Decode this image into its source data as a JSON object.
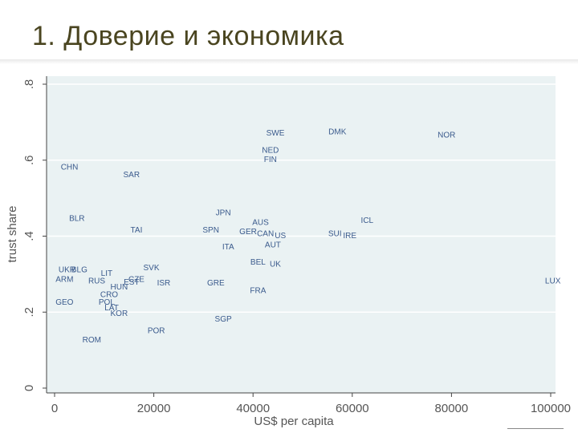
{
  "slide": {
    "title": "1. Доверие и экономика"
  },
  "chart_data": {
    "type": "scatter",
    "xlabel": "US$ per capita",
    "ylabel": "trust share",
    "xlim": [
      0,
      103000
    ],
    "ylim": [
      0,
      0.8
    ],
    "x_ticks": [
      0,
      20000,
      40000,
      60000,
      80000,
      100000
    ],
    "x_tick_labels": [
      "0",
      "20000",
      "40000",
      "60000",
      "80000",
      "100000"
    ],
    "y_ticks": [
      0,
      0.2,
      0.4,
      0.6,
      0.8
    ],
    "y_tick_labels": [
      "0",
      ".2",
      ".4",
      ".6",
      ".8"
    ],
    "grid": true,
    "points": [
      {
        "label": "SWE",
        "x": 44500,
        "y": 0.665
      },
      {
        "label": "DMK",
        "x": 57000,
        "y": 0.668
      },
      {
        "label": "NOR",
        "x": 79000,
        "y": 0.66
      },
      {
        "label": "NED",
        "x": 43500,
        "y": 0.62
      },
      {
        "label": "FIN",
        "x": 43500,
        "y": 0.595
      },
      {
        "label": "CHN",
        "x": 3000,
        "y": 0.575
      },
      {
        "label": "SAR",
        "x": 15500,
        "y": 0.555
      },
      {
        "label": "JPN",
        "x": 34000,
        "y": 0.455
      },
      {
        "label": "BLR",
        "x": 4500,
        "y": 0.44
      },
      {
        "label": "ICL",
        "x": 63000,
        "y": 0.435
      },
      {
        "label": "AUS",
        "x": 41500,
        "y": 0.43
      },
      {
        "label": "TAI",
        "x": 16500,
        "y": 0.41
      },
      {
        "label": "SPN",
        "x": 31500,
        "y": 0.41
      },
      {
        "label": "GER",
        "x": 39000,
        "y": 0.405
      },
      {
        "label": "CAN",
        "x": 42500,
        "y": 0.4
      },
      {
        "label": "US",
        "x": 45500,
        "y": 0.395
      },
      {
        "label": "SUI",
        "x": 56500,
        "y": 0.4
      },
      {
        "label": "IRE",
        "x": 59500,
        "y": 0.395
      },
      {
        "label": "AUT",
        "x": 44000,
        "y": 0.37
      },
      {
        "label": "ITA",
        "x": 35000,
        "y": 0.365
      },
      {
        "label": "BEL",
        "x": 41000,
        "y": 0.325
      },
      {
        "label": "UK",
        "x": 44500,
        "y": 0.32
      },
      {
        "label": "SVK",
        "x": 19500,
        "y": 0.31
      },
      {
        "label": "UKR",
        "x": 2500,
        "y": 0.305
      },
      {
        "label": "BLG",
        "x": 5000,
        "y": 0.305
      },
      {
        "label": "LIT",
        "x": 10500,
        "y": 0.295
      },
      {
        "label": "ARM",
        "x": 2000,
        "y": 0.28
      },
      {
        "label": "RUS",
        "x": 8500,
        "y": 0.275
      },
      {
        "label": "CZE",
        "x": 16500,
        "y": 0.28
      },
      {
        "label": "EST",
        "x": 15500,
        "y": 0.272
      },
      {
        "label": "ISR",
        "x": 22000,
        "y": 0.27
      },
      {
        "label": "GRE",
        "x": 32500,
        "y": 0.27
      },
      {
        "label": "HUN",
        "x": 13000,
        "y": 0.26
      },
      {
        "label": "FRA",
        "x": 41000,
        "y": 0.25
      },
      {
        "label": "CRO",
        "x": 11000,
        "y": 0.24
      },
      {
        "label": "GEO",
        "x": 2000,
        "y": 0.22
      },
      {
        "label": "POL",
        "x": 10500,
        "y": 0.22
      },
      {
        "label": "LAT",
        "x": 11500,
        "y": 0.205
      },
      {
        "label": "KOR",
        "x": 13000,
        "y": 0.19
      },
      {
        "label": "SGP",
        "x": 34000,
        "y": 0.175
      },
      {
        "label": "POR",
        "x": 20500,
        "y": 0.145
      },
      {
        "label": "ROM",
        "x": 7500,
        "y": 0.12
      },
      {
        "label": "LUX",
        "x": 102000,
        "y": 0.275
      }
    ]
  }
}
